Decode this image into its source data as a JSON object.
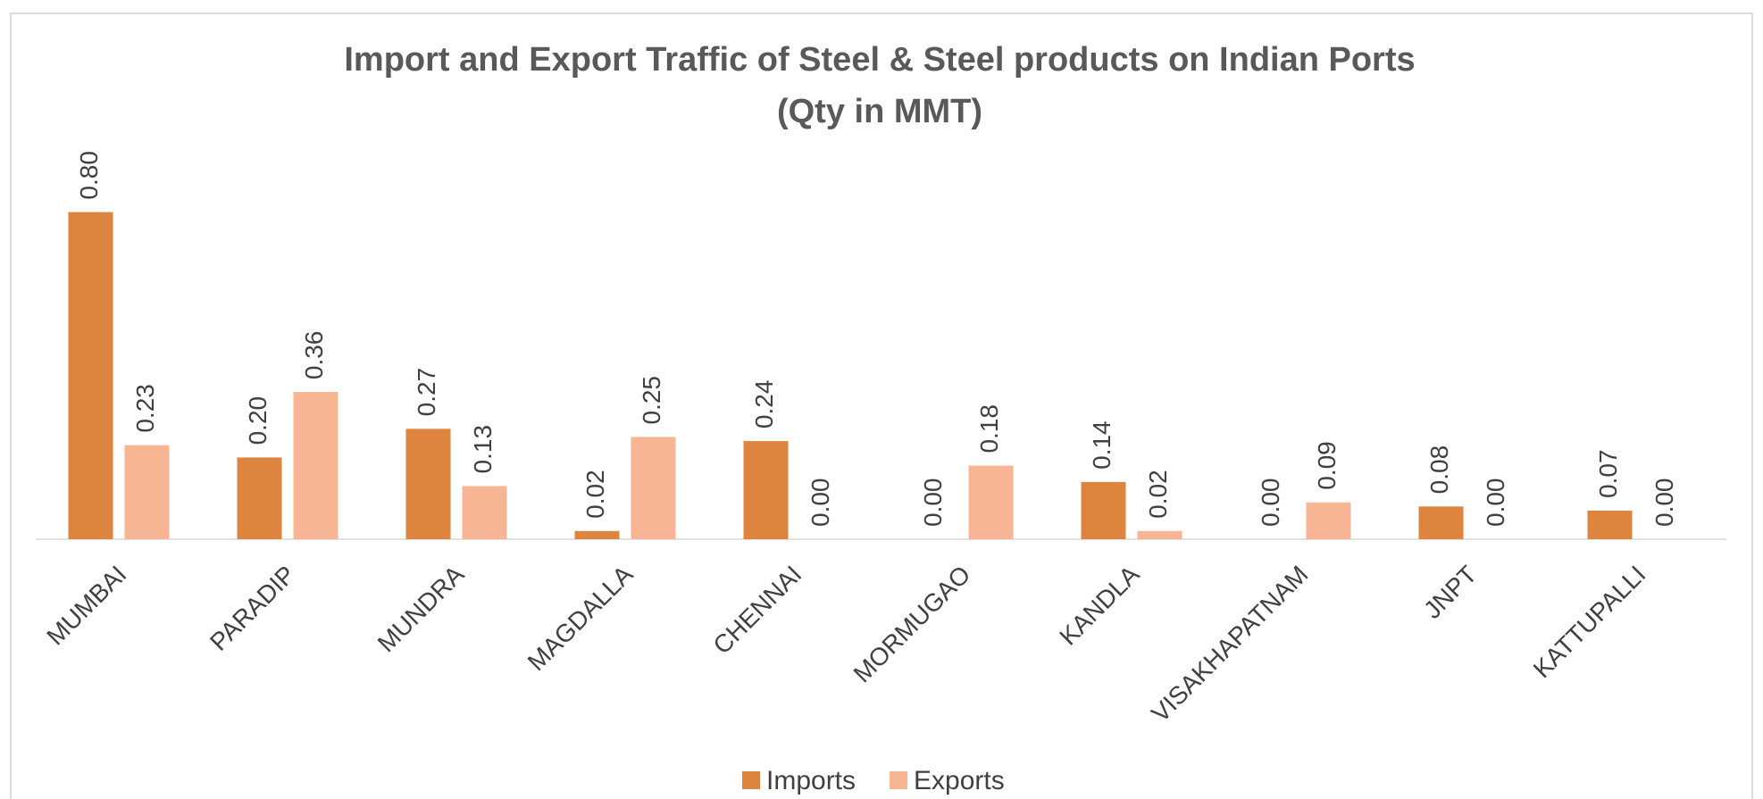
{
  "chart_data": {
    "type": "bar",
    "title": "Import and Export Traffic of Steel & Steel products on Indian Ports",
    "subtitle": "(Qty in MMT)",
    "categories": [
      "MUMBAI",
      "PARADIP",
      "MUNDRA",
      "MAGDALLA",
      "CHENNAI",
      "MORMUGAO",
      "KANDLA",
      "VISAKHAPATNAM",
      "JNPT",
      "KATTUPALLI"
    ],
    "series": [
      {
        "name": "Imports",
        "color": "#dd843e",
        "values": [
          0.8,
          0.2,
          0.27,
          0.02,
          0.24,
          0,
          0.14,
          0,
          0.08,
          0.07
        ],
        "value_labels": [
          "0.80",
          "0.20",
          "0.27",
          "0.02",
          "0.24",
          "0.00",
          "0.14",
          "0.00",
          "0.08",
          "0.07"
        ]
      },
      {
        "name": "Exports",
        "color": "#f8b593",
        "values": [
          0.23,
          0.36,
          0.13,
          0.25,
          0,
          0.18,
          0.02,
          0.09,
          0,
          0
        ],
        "value_labels": [
          "0.23",
          "0.36",
          "0.13",
          "0.25",
          "0.00",
          "0.18",
          "0.02",
          "0.09",
          "0.00",
          "0.00"
        ]
      }
    ],
    "legend": "bottom"
  }
}
